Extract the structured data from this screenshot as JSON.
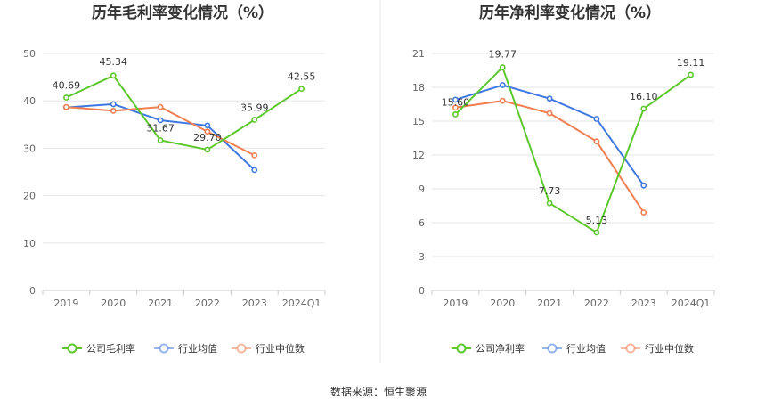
{
  "chart_data": [
    {
      "type": "line",
      "title": "历年毛利率变化情况（%）",
      "categories": [
        "2019",
        "2020",
        "2021",
        "2022",
        "2023",
        "2024Q1"
      ],
      "yticks": [
        0,
        10,
        20,
        30,
        40,
        50
      ],
      "ylim": [
        0,
        50
      ],
      "grid": true,
      "legend_position": "bottom",
      "series": [
        {
          "name": "公司毛利率",
          "color": "#5dc82d",
          "values": [
            40.69,
            45.34,
            31.67,
            29.7,
            35.99,
            42.55
          ],
          "labels": [
            "40.69",
            "45.34",
            "31.67",
            "29.70",
            "35.99",
            "42.55"
          ]
        },
        {
          "name": "行业均值",
          "color": "#3f78e0",
          "values": [
            38.6,
            39.3,
            35.9,
            34.8,
            25.4,
            null
          ]
        },
        {
          "name": "行业中位数",
          "color": "#f07f52",
          "values": [
            38.7,
            37.9,
            38.7,
            33.5,
            28.5,
            null
          ]
        }
      ]
    },
    {
      "type": "line",
      "title": "历年净利率变化情况（%）",
      "categories": [
        "2019",
        "2020",
        "2021",
        "2022",
        "2023",
        "2024Q1"
      ],
      "yticks": [
        0,
        3,
        6,
        9,
        12,
        15,
        18,
        21
      ],
      "ylim": [
        0,
        21
      ],
      "grid": true,
      "legend_position": "bottom",
      "series": [
        {
          "name": "公司净利率",
          "color": "#5dc82d",
          "values": [
            15.6,
            19.77,
            7.73,
            5.13,
            16.1,
            19.11
          ],
          "labels": [
            "15.60",
            "19.77",
            "7.73",
            "5.13",
            "16.10",
            "19.11"
          ]
        },
        {
          "name": "行业均值",
          "color": "#3f78e0",
          "values": [
            16.9,
            18.2,
            17.0,
            15.2,
            9.3,
            null
          ]
        },
        {
          "name": "行业中位数",
          "color": "#f07f52",
          "values": [
            16.2,
            16.8,
            15.7,
            13.2,
            6.9,
            null
          ]
        }
      ]
    }
  ],
  "source_text": "数据来源：恒生聚源"
}
